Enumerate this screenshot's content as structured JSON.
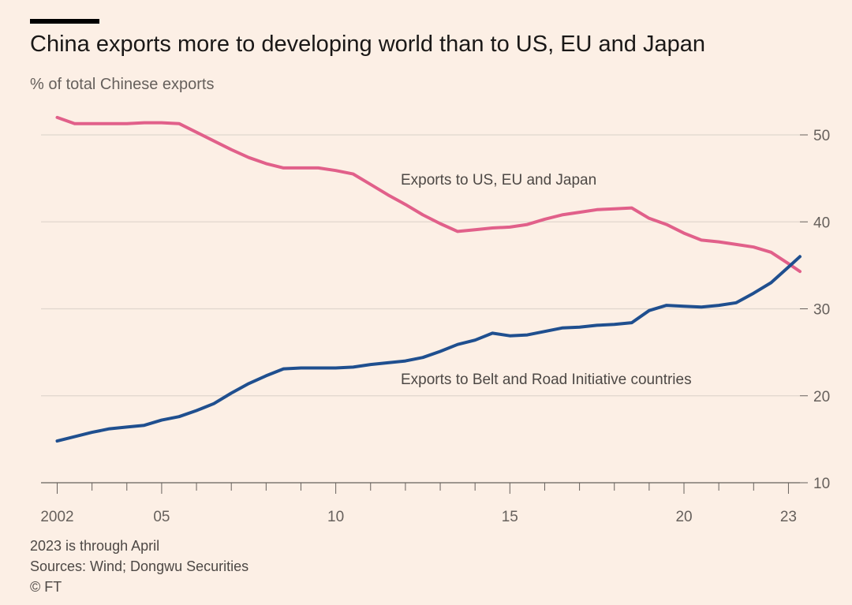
{
  "header": {
    "title": "China exports more to developing world than to US, EU and Japan",
    "subtitle": "% of total Chinese exports"
  },
  "footer": {
    "note": "2023 is through April",
    "sources": "Sources: Wind; Dongwu Securities",
    "copyright": "© FT"
  },
  "colors": {
    "background": "#fcefe5",
    "us_eu_japan": "#e1608a",
    "belt_and_road": "#1f4f8f",
    "gridline": "#e0d6cd",
    "baseline": "#66605c"
  },
  "chart_data": {
    "type": "line",
    "ylabel": "% of total Chinese exports",
    "ylim": [
      10,
      50
    ],
    "yticks": [
      10,
      20,
      30,
      40,
      50
    ],
    "xlim": [
      2002,
      2023.33
    ],
    "xticks": [
      2002,
      2005,
      2010,
      2015,
      2020,
      2023
    ],
    "xtick_labels": [
      "2002",
      "05",
      "10",
      "15",
      "20",
      "23"
    ],
    "grid": true,
    "y_axis_side": "right",
    "series": [
      {
        "name": "Exports to US, EU and Japan",
        "color": "#e1608a",
        "points": [
          [
            2002.0,
            52.0
          ],
          [
            2002.5,
            51.3
          ],
          [
            2003.0,
            51.3
          ],
          [
            2003.5,
            51.3
          ],
          [
            2004.0,
            51.3
          ],
          [
            2004.5,
            51.4
          ],
          [
            2005.0,
            51.4
          ],
          [
            2005.5,
            51.3
          ],
          [
            2006.0,
            50.3
          ],
          [
            2006.5,
            49.3
          ],
          [
            2007.0,
            48.3
          ],
          [
            2007.5,
            47.4
          ],
          [
            2008.0,
            46.7
          ],
          [
            2008.5,
            46.2
          ],
          [
            2009.0,
            46.2
          ],
          [
            2009.5,
            46.2
          ],
          [
            2010.0,
            45.9
          ],
          [
            2010.5,
            45.5
          ],
          [
            2011.0,
            44.3
          ],
          [
            2011.5,
            43.1
          ],
          [
            2012.0,
            42.0
          ],
          [
            2012.5,
            40.8
          ],
          [
            2013.0,
            39.8
          ],
          [
            2013.5,
            38.9
          ],
          [
            2014.0,
            39.1
          ],
          [
            2014.5,
            39.3
          ],
          [
            2015.0,
            39.4
          ],
          [
            2015.5,
            39.7
          ],
          [
            2016.0,
            40.3
          ],
          [
            2016.5,
            40.8
          ],
          [
            2017.0,
            41.1
          ],
          [
            2017.5,
            41.4
          ],
          [
            2018.0,
            41.5
          ],
          [
            2018.5,
            41.6
          ],
          [
            2019.0,
            40.4
          ],
          [
            2019.5,
            39.7
          ],
          [
            2020.0,
            38.7
          ],
          [
            2020.5,
            37.9
          ],
          [
            2021.0,
            37.7
          ],
          [
            2021.5,
            37.4
          ],
          [
            2022.0,
            37.1
          ],
          [
            2022.5,
            36.5
          ],
          [
            2023.0,
            35.2
          ],
          [
            2023.33,
            34.3
          ]
        ]
      },
      {
        "name": "Exports to Belt and Road Initiative countries",
        "color": "#1f4f8f",
        "points": [
          [
            2002.0,
            14.8
          ],
          [
            2002.5,
            15.3
          ],
          [
            2003.0,
            15.8
          ],
          [
            2003.5,
            16.2
          ],
          [
            2004.0,
            16.4
          ],
          [
            2004.5,
            16.6
          ],
          [
            2005.0,
            17.2
          ],
          [
            2005.5,
            17.6
          ],
          [
            2006.0,
            18.3
          ],
          [
            2006.5,
            19.1
          ],
          [
            2007.0,
            20.3
          ],
          [
            2007.5,
            21.4
          ],
          [
            2008.0,
            22.3
          ],
          [
            2008.5,
            23.1
          ],
          [
            2009.0,
            23.2
          ],
          [
            2009.5,
            23.2
          ],
          [
            2010.0,
            23.2
          ],
          [
            2010.5,
            23.3
          ],
          [
            2011.0,
            23.6
          ],
          [
            2011.5,
            23.8
          ],
          [
            2012.0,
            24.0
          ],
          [
            2012.5,
            24.4
          ],
          [
            2013.0,
            25.1
          ],
          [
            2013.5,
            25.9
          ],
          [
            2014.0,
            26.4
          ],
          [
            2014.5,
            27.2
          ],
          [
            2015.0,
            26.9
          ],
          [
            2015.5,
            27.0
          ],
          [
            2016.0,
            27.4
          ],
          [
            2016.5,
            27.8
          ],
          [
            2017.0,
            27.9
          ],
          [
            2017.5,
            28.1
          ],
          [
            2018.0,
            28.2
          ],
          [
            2018.5,
            28.4
          ],
          [
            2019.0,
            29.8
          ],
          [
            2019.5,
            30.4
          ],
          [
            2020.0,
            30.3
          ],
          [
            2020.5,
            30.2
          ],
          [
            2021.0,
            30.4
          ],
          [
            2021.5,
            30.7
          ],
          [
            2022.0,
            31.8
          ],
          [
            2022.5,
            33.0
          ],
          [
            2023.0,
            34.8
          ],
          [
            2023.33,
            36.0
          ]
        ]
      }
    ],
    "annotations": [
      {
        "text": "Exports to US, EU and Japan",
        "series": 0
      },
      {
        "text": "Exports to Belt and Road Initiative countries",
        "series": 1
      }
    ]
  }
}
